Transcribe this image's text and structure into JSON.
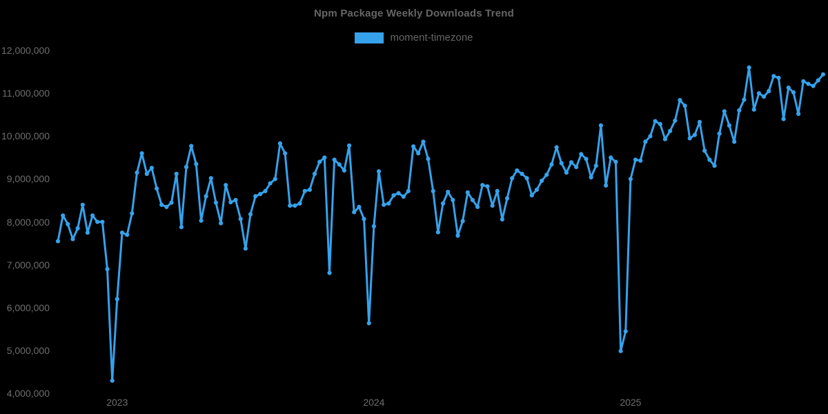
{
  "chart_data": {
    "type": "line",
    "title": "Npm Package Weekly Downloads Trend",
    "legend": [
      {
        "label": "moment-timezone",
        "color": "#36A2EB"
      }
    ],
    "legend_position": "top",
    "grid": false,
    "background": "#000000",
    "colors": {
      "background": "#000000",
      "line": "#36A2EB",
      "point": "#36A2EB",
      "title_text": "#666666",
      "axis_text": "#6e6e6e"
    },
    "xlabel": "",
    "ylabel": "",
    "x_unit": "week",
    "ylim": [
      4000000,
      12000000
    ],
    "y_ticks": [
      {
        "value": 4000000,
        "label": "4,000,000"
      },
      {
        "value": 5000000,
        "label": "5,000,000"
      },
      {
        "value": 6000000,
        "label": "6,000,000"
      },
      {
        "value": 7000000,
        "label": "7,000,000"
      },
      {
        "value": 8000000,
        "label": "8,000,000"
      },
      {
        "value": 9000000,
        "label": "9,000,000"
      },
      {
        "value": 10000000,
        "label": "10,000,000"
      },
      {
        "value": 11000000,
        "label": "11,000,000"
      },
      {
        "value": 12000000,
        "label": "12,000,000"
      }
    ],
    "x_ticks": [
      {
        "index": 12,
        "label": "2023"
      },
      {
        "index": 64,
        "label": "2024"
      },
      {
        "index": 116,
        "label": "2025"
      }
    ],
    "series": [
      {
        "name": "moment-timezone",
        "values": [
          7550000,
          8150000,
          7950000,
          7600000,
          7850000,
          8400000,
          7750000,
          8150000,
          8000000,
          8000000,
          6900000,
          4300000,
          6200000,
          7750000,
          7700000,
          8200000,
          9150000,
          9600000,
          9120000,
          9260000,
          8780000,
          8400000,
          8350000,
          8450000,
          9120000,
          7880000,
          9280000,
          9770000,
          9350000,
          8030000,
          8600000,
          9020000,
          8450000,
          7970000,
          8860000,
          8460000,
          8510000,
          8070000,
          7380000,
          8180000,
          8600000,
          8650000,
          8720000,
          8900000,
          9000000,
          9830000,
          9600000,
          8380000,
          8380000,
          8430000,
          8720000,
          8750000,
          9120000,
          9400000,
          9500000,
          6810000,
          9450000,
          9340000,
          9200000,
          9780000,
          8230000,
          8350000,
          8070000,
          5640000,
          7900000,
          9180000,
          8400000,
          8430000,
          8620000,
          8670000,
          8590000,
          8720000,
          9760000,
          9600000,
          9870000,
          9470000,
          8720000,
          7760000,
          8430000,
          8700000,
          8510000,
          7680000,
          8020000,
          8690000,
          8510000,
          8350000,
          8860000,
          8830000,
          8380000,
          8720000,
          8060000,
          8550000,
          9020000,
          9200000,
          9120000,
          9020000,
          8620000,
          8750000,
          8960000,
          9100000,
          9340000,
          9740000,
          9370000,
          9150000,
          9390000,
          9280000,
          9580000,
          9470000,
          9040000,
          9310000,
          10250000,
          8850000,
          9500000,
          9400000,
          4990000,
          5450000,
          9000000,
          9450000,
          9430000,
          9870000,
          10000000,
          10350000,
          10280000,
          9930000,
          10120000,
          10360000,
          10840000,
          10710000,
          9950000,
          10030000,
          10330000,
          9660000,
          9450000,
          9310000,
          10060000,
          10580000,
          10250000,
          9870000,
          10600000,
          10850000,
          11600000,
          10620000,
          11000000,
          10920000,
          11050000,
          11400000,
          11360000,
          10400000,
          11130000,
          11020000,
          10520000,
          11280000,
          11220000,
          11170000,
          11300000,
          11440000
        ]
      }
    ]
  }
}
